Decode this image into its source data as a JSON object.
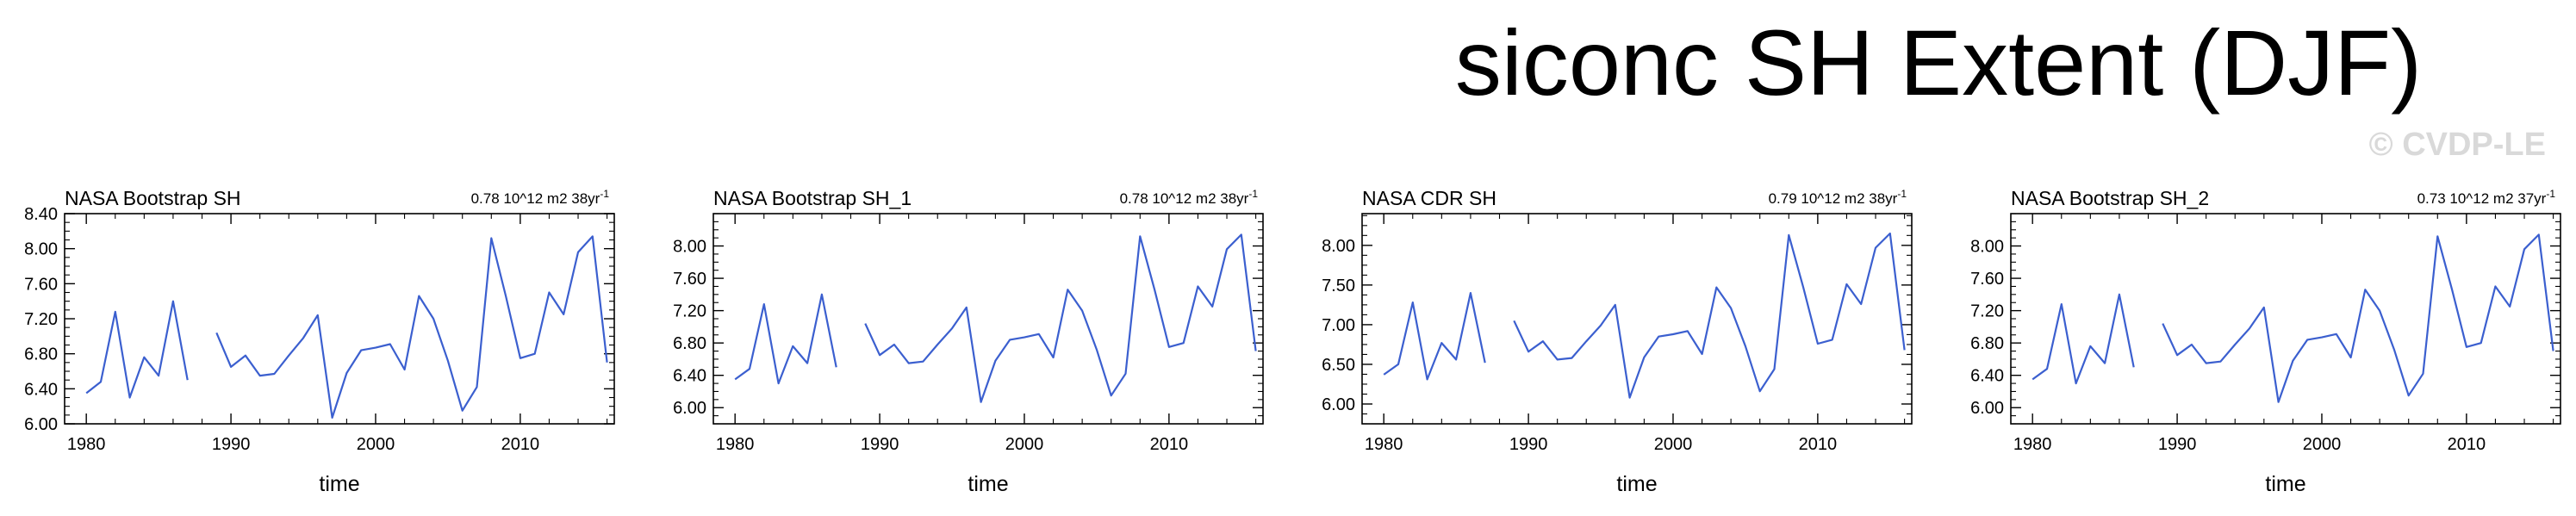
{
  "figure": {
    "title": "siconc SH Extent (DJF)",
    "watermark": "© CVDP-LE",
    "line_color": "#3b5fcf"
  },
  "chart_data": [
    {
      "type": "line",
      "title": "NASA Bootstrap SH",
      "trend_label": "0.78 10^12 m2 38yr",
      "trend_exp": "-1",
      "xlabel": "time",
      "ylabel": "",
      "xlim": [
        1978.5,
        2016.5
      ],
      "ylim": [
        6.0,
        8.4
      ],
      "yticks": [
        6.0,
        6.4,
        6.8,
        7.2,
        7.6,
        8.0,
        8.4
      ],
      "ytick_labels": [
        "6.00",
        "6.40",
        "6.80",
        "7.20",
        "7.60",
        "8.00",
        "8.40"
      ],
      "xticks": [
        1980,
        1990,
        2000,
        2010
      ],
      "xtick_labels": [
        "1980",
        "1990",
        "2000",
        "2010"
      ],
      "x": [
        1980,
        1981,
        1982,
        1983,
        1984,
        1985,
        1986,
        1987,
        1988,
        1989,
        1990,
        1991,
        1992,
        1993,
        1994,
        1995,
        1996,
        1997,
        1998,
        1999,
        2000,
        2001,
        2002,
        2003,
        2004,
        2005,
        2006,
        2007,
        2008,
        2009,
        2010,
        2011,
        2012,
        2013,
        2014,
        2015,
        2016
      ],
      "values": [
        6.35,
        6.48,
        7.28,
        6.3,
        6.76,
        6.55,
        7.4,
        6.5,
        null,
        7.04,
        6.65,
        6.78,
        6.55,
        6.57,
        6.78,
        6.98,
        7.24,
        6.07,
        6.58,
        6.84,
        6.87,
        6.91,
        6.62,
        7.46,
        7.2,
        6.72,
        6.15,
        6.42,
        8.12,
        7.46,
        6.75,
        6.8,
        7.5,
        7.25,
        7.96,
        8.14,
        6.7
      ]
    },
    {
      "type": "line",
      "title": "NASA Bootstrap SH_1",
      "trend_label": "0.78 10^12 m2 38yr",
      "trend_exp": "-1",
      "xlabel": "time",
      "ylabel": "",
      "xlim": [
        1978.5,
        2016.5
      ],
      "ylim": [
        5.8,
        8.4
      ],
      "yticks": [
        6.0,
        6.4,
        6.8,
        7.2,
        7.6,
        8.0
      ],
      "ytick_labels": [
        "6.00",
        "6.40",
        "6.80",
        "7.20",
        "7.60",
        "8.00"
      ],
      "xticks": [
        1980,
        1990,
        2000,
        2010
      ],
      "xtick_labels": [
        "1980",
        "1990",
        "2000",
        "2010"
      ],
      "x": [
        1980,
        1981,
        1982,
        1983,
        1984,
        1985,
        1986,
        1987,
        1988,
        1989,
        1990,
        1991,
        1992,
        1993,
        1994,
        1995,
        1996,
        1997,
        1998,
        1999,
        2000,
        2001,
        2002,
        2003,
        2004,
        2005,
        2006,
        2007,
        2008,
        2009,
        2010,
        2011,
        2012,
        2013,
        2014,
        2015,
        2016
      ],
      "values": [
        6.35,
        6.48,
        7.28,
        6.3,
        6.76,
        6.55,
        7.4,
        6.5,
        null,
        7.04,
        6.65,
        6.78,
        6.55,
        6.57,
        6.78,
        6.98,
        7.24,
        6.07,
        6.58,
        6.84,
        6.87,
        6.91,
        6.62,
        7.46,
        7.2,
        6.72,
        6.15,
        6.42,
        8.12,
        7.46,
        6.75,
        6.8,
        7.5,
        7.25,
        7.96,
        8.14,
        6.7
      ]
    },
    {
      "type": "line",
      "title": "NASA CDR SH",
      "trend_label": "0.79 10^12 m2 38yr",
      "trend_exp": "-1",
      "xlabel": "time",
      "ylabel": "",
      "xlim": [
        1978.5,
        2016.5
      ],
      "ylim": [
        5.75,
        8.4
      ],
      "yticks": [
        6.0,
        6.5,
        7.0,
        7.5,
        8.0
      ],
      "ytick_labels": [
        "6.00",
        "6.50",
        "7.00",
        "7.50",
        "8.00"
      ],
      "xticks": [
        1980,
        1990,
        2000,
        2010
      ],
      "xtick_labels": [
        "1980",
        "1990",
        "2000",
        "2010"
      ],
      "x": [
        1980,
        1981,
        1982,
        1983,
        1984,
        1985,
        1986,
        1987,
        1988,
        1989,
        1990,
        1991,
        1992,
        1993,
        1994,
        1995,
        1996,
        1997,
        1998,
        1999,
        2000,
        2001,
        2002,
        2003,
        2004,
        2005,
        2006,
        2007,
        2008,
        2009,
        2010,
        2011,
        2012,
        2013,
        2014,
        2015,
        2016
      ],
      "values": [
        6.37,
        6.5,
        7.28,
        6.31,
        6.77,
        6.56,
        7.4,
        6.52,
        null,
        7.05,
        6.66,
        6.79,
        6.56,
        6.58,
        6.79,
        6.99,
        7.25,
        6.08,
        6.59,
        6.85,
        6.88,
        6.92,
        6.63,
        7.47,
        7.21,
        6.73,
        6.16,
        6.44,
        8.13,
        7.47,
        6.76,
        6.81,
        7.51,
        7.26,
        7.97,
        8.15,
        6.68
      ]
    },
    {
      "type": "line",
      "title": "NASA Bootstrap SH_2",
      "trend_label": "0.73 10^12 m2 37yr",
      "trend_exp": "-1",
      "xlabel": "time",
      "ylabel": "",
      "xlim": [
        1978.5,
        2016.5
      ],
      "ylim": [
        5.8,
        8.4
      ],
      "yticks": [
        6.0,
        6.4,
        6.8,
        7.2,
        7.6,
        8.0
      ],
      "ytick_labels": [
        "6.00",
        "6.40",
        "6.80",
        "7.20",
        "7.60",
        "8.00"
      ],
      "xticks": [
        1980,
        1990,
        2000,
        2010
      ],
      "xtick_labels": [
        "1980",
        "1990",
        "2000",
        "2010"
      ],
      "x": [
        1980,
        1981,
        1982,
        1983,
        1984,
        1985,
        1986,
        1987,
        1988,
        1989,
        1990,
        1991,
        1992,
        1993,
        1994,
        1995,
        1996,
        1997,
        1998,
        1999,
        2000,
        2001,
        2002,
        2003,
        2004,
        2005,
        2006,
        2007,
        2008,
        2009,
        2010,
        2011,
        2012,
        2013,
        2014,
        2015,
        2016
      ],
      "values": [
        6.35,
        6.48,
        7.28,
        6.3,
        6.76,
        6.55,
        7.4,
        6.5,
        null,
        7.04,
        6.65,
        6.78,
        6.55,
        6.57,
        6.78,
        6.98,
        7.24,
        6.07,
        6.58,
        6.84,
        6.87,
        6.91,
        6.62,
        7.46,
        7.2,
        6.72,
        6.15,
        6.42,
        8.12,
        7.46,
        6.75,
        6.8,
        7.5,
        7.25,
        7.96,
        8.14,
        6.7
      ]
    }
  ]
}
